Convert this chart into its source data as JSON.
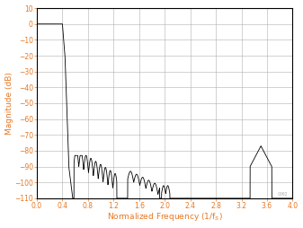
{
  "title": "",
  "xlabel": "Normalized Frequency (1/f$_S$)",
  "ylabel": "Magnitude (dB)",
  "xlim": [
    0,
    4
  ],
  "ylim": [
    -110,
    10
  ],
  "xticks": [
    0,
    0.4,
    0.8,
    1.2,
    1.6,
    2,
    2.4,
    2.8,
    3.2,
    3.6,
    4
  ],
  "yticks": [
    10,
    0,
    -10,
    -20,
    -30,
    -40,
    -50,
    -60,
    -70,
    -80,
    -90,
    -100,
    -110
  ],
  "line_color": "#000000",
  "grid_color": "#b0b0b0",
  "background_color": "#ffffff",
  "axis_label_color": "#e87722",
  "tick_label_color": "#e87722",
  "watermark": "C002"
}
